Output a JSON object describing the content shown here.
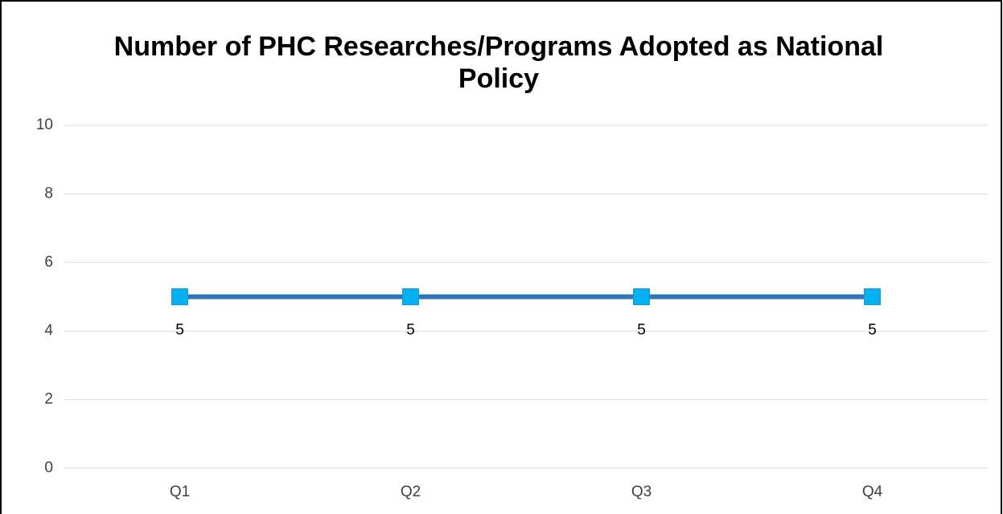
{
  "chart_data": {
    "type": "line",
    "title": "Number of PHC Researches/Programs Adopted as National Policy",
    "categories": [
      "Q1",
      "Q2",
      "Q3",
      "Q4"
    ],
    "values": [
      5,
      5,
      5,
      5
    ],
    "color": "#2e75b6",
    "marker_color": "#00b0f0",
    "ylim": [
      0,
      10
    ],
    "yticks": [
      0,
      2,
      4,
      6,
      8,
      10
    ],
    "grid": true
  }
}
